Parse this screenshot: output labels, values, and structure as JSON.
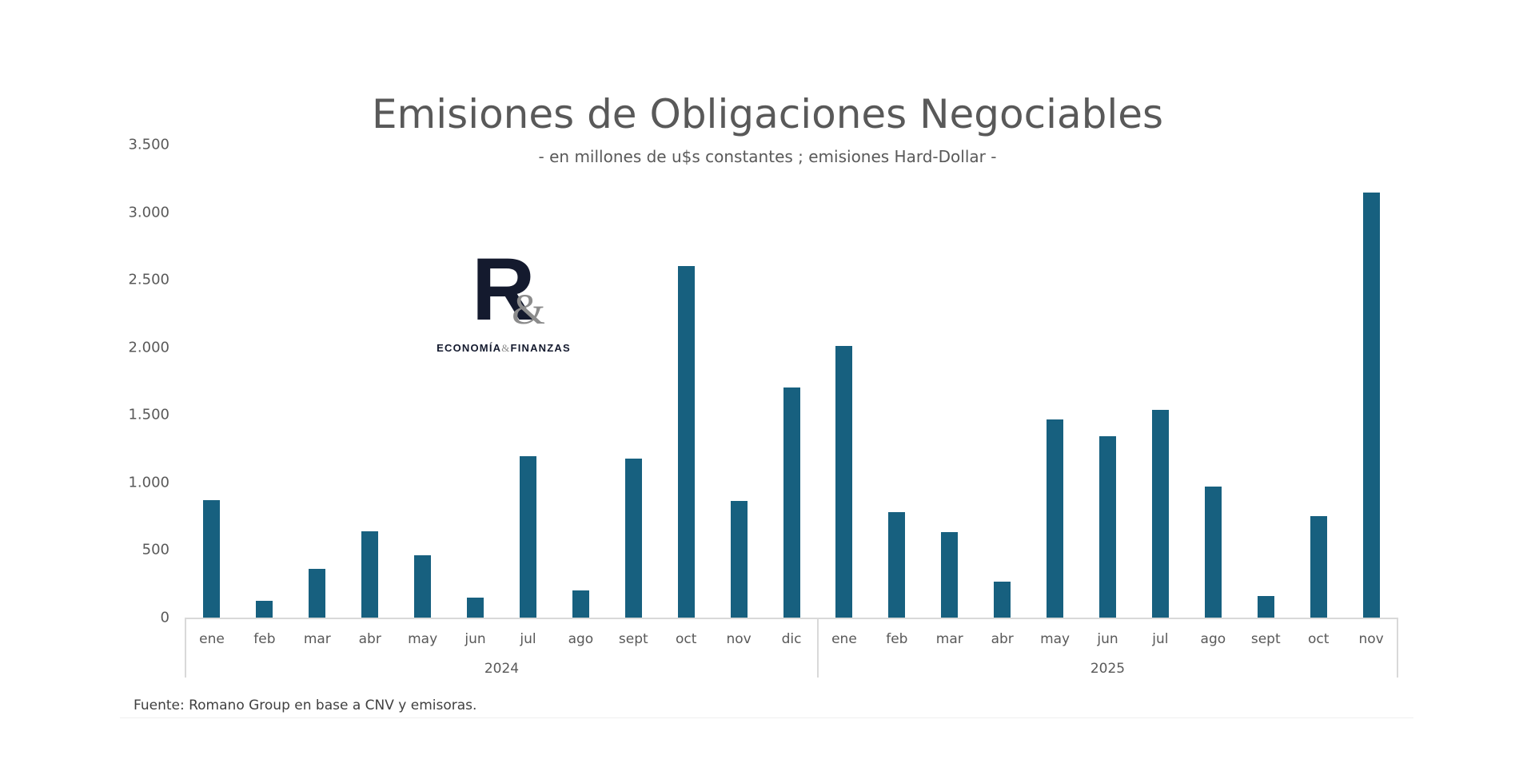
{
  "header": {
    "title": "Emisiones de Obligaciones Negociables",
    "subtitle": "- en millones de u$s constantes ; emisiones Hard-Dollar -"
  },
  "logo": {
    "letter": "R",
    "ampersand": "&",
    "text_left": "ECONOMÍA",
    "text_amp": "&",
    "text_right": "FINANZAS"
  },
  "footer": {
    "source": "Fuente: Romano Group en base a CNV y emisoras."
  },
  "colors": {
    "bar": "#17607f",
    "axis": "#d9d9d9",
    "text": "#595959"
  },
  "chart_data": {
    "type": "bar",
    "title": "Emisiones de Obligaciones Negociables",
    "subtitle": "- en millones de u$s constantes ; emisiones Hard-Dollar -",
    "xlabel": "",
    "ylabel": "",
    "ylim": [
      0,
      3500
    ],
    "yticks": [
      0,
      500,
      1000,
      1500,
      2000,
      2500,
      3000,
      3500
    ],
    "ytick_labels": [
      "0",
      "500",
      "1.000",
      "1.500",
      "2.000",
      "2.500",
      "3.000",
      "3.500"
    ],
    "grid": false,
    "legend": null,
    "groups": [
      {
        "label": "2024",
        "categories": [
          "ene",
          "feb",
          "mar",
          "abr",
          "may",
          "jun",
          "jul",
          "ago",
          "sept",
          "oct",
          "nov",
          "dic"
        ]
      },
      {
        "label": "2025",
        "categories": [
          "ene",
          "feb",
          "mar",
          "abr",
          "may",
          "jun",
          "jul",
          "ago",
          "sept",
          "oct",
          "nov"
        ]
      }
    ],
    "categories": [
      "ene 2024",
      "feb 2024",
      "mar 2024",
      "abr 2024",
      "may 2024",
      "jun 2024",
      "jul 2024",
      "ago 2024",
      "sept 2024",
      "oct 2024",
      "nov 2024",
      "dic 2024",
      "ene 2025",
      "feb 2025",
      "mar 2025",
      "abr 2025",
      "may 2025",
      "jun 2025",
      "jul 2025",
      "ago 2025",
      "sept 2025",
      "oct 2025",
      "nov 2025"
    ],
    "category_labels": [
      "ene",
      "feb",
      "mar",
      "abr",
      "may",
      "jun",
      "jul",
      "ago",
      "sept",
      "oct",
      "nov",
      "dic",
      "ene",
      "feb",
      "mar",
      "abr",
      "may",
      "jun",
      "jul",
      "ago",
      "sept",
      "oct",
      "nov"
    ],
    "values": [
      870,
      126,
      358,
      638,
      462,
      146,
      1194,
      202,
      1178,
      2604,
      864,
      1702,
      2013,
      779,
      633,
      264,
      1468,
      1344,
      1539,
      970,
      161,
      751,
      3146
    ],
    "source": "Fuente: Romano Group en base a CNV y emisoras."
  }
}
